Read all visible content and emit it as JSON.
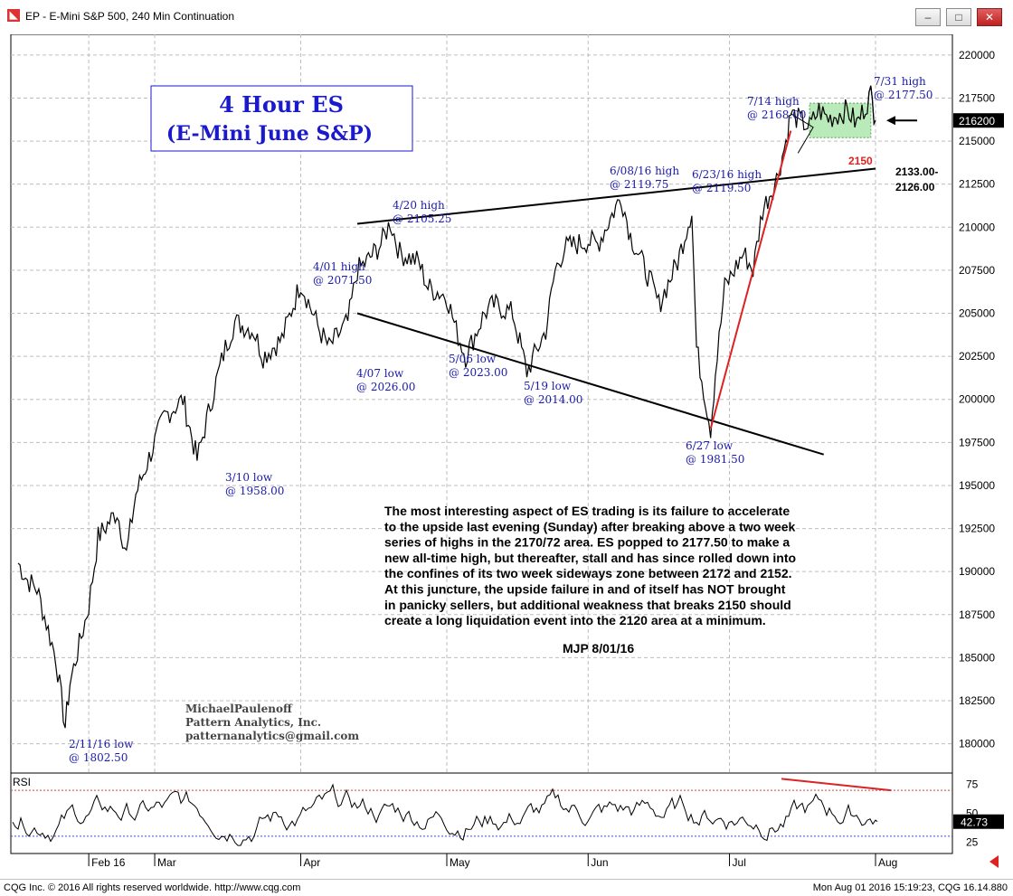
{
  "window": {
    "title": "EP - E-Mini S&P 500, 240 Min Continuation",
    "min_label": "–",
    "max_label": "□",
    "close_label": "✕"
  },
  "status": {
    "left": "CQG Inc. © 2016 All rights reserved worldwide. http://www.cqg.com",
    "right": "Mon Aug 01 2016 15:19:23, CQG 16.14.880"
  },
  "chart_data": {
    "type": "line",
    "title": "4 Hour ES",
    "subtitle": "(E-Mini June S&P)",
    "x_labels": [
      "Feb 16",
      "Mar",
      "Apr",
      "May",
      "Jun",
      "Jul",
      "Aug"
    ],
    "y_ticks": [
      1800,
      1825,
      1850,
      1875,
      1900,
      1925,
      1950,
      1975,
      2000,
      2025,
      2050,
      2075,
      2100,
      2125,
      2150,
      2175,
      2200
    ],
    "y_tick_labels": [
      "180000",
      "182500",
      "185000",
      "187500",
      "190000",
      "192500",
      "195000",
      "197500",
      "200000",
      "202500",
      "205000",
      "207500",
      "210000",
      "212500",
      "215000",
      "217500",
      "220000"
    ],
    "ylim": [
      1783,
      2212
    ],
    "last_price_label": "216200",
    "last_price": 2162,
    "price_series": [
      [
        "2016-02-01",
        1905
      ],
      [
        "2016-02-03",
        1895
      ],
      [
        "2016-02-05",
        1890
      ],
      [
        "2016-02-09",
        1850
      ],
      [
        "2016-02-11",
        1810
      ],
      [
        "2016-02-12",
        1835
      ],
      [
        "2016-02-16",
        1880
      ],
      [
        "2016-02-18",
        1920
      ],
      [
        "2016-02-22",
        1935
      ],
      [
        "2016-02-24",
        1910
      ],
      [
        "2016-02-26",
        1945
      ],
      [
        "2016-03-01",
        1975
      ],
      [
        "2016-03-03",
        1990
      ],
      [
        "2016-03-07",
        2000
      ],
      [
        "2016-03-10",
        1965
      ],
      [
        "2016-03-14",
        2010
      ],
      [
        "2016-03-16",
        2030
      ],
      [
        "2016-03-18",
        2045
      ],
      [
        "2016-03-22",
        2040
      ],
      [
        "2016-03-24",
        2025
      ],
      [
        "2016-03-28",
        2035
      ],
      [
        "2016-04-01",
        2068
      ],
      [
        "2016-04-05",
        2040
      ],
      [
        "2016-04-07",
        2030
      ],
      [
        "2016-04-11",
        2045
      ],
      [
        "2016-04-13",
        2075
      ],
      [
        "2016-04-15",
        2080
      ],
      [
        "2016-04-18",
        2090
      ],
      [
        "2016-04-20",
        2103
      ],
      [
        "2016-04-22",
        2085
      ],
      [
        "2016-04-26",
        2080
      ],
      [
        "2016-04-28",
        2065
      ],
      [
        "2016-05-02",
        2060
      ],
      [
        "2016-05-04",
        2040
      ],
      [
        "2016-05-06",
        2025
      ],
      [
        "2016-05-10",
        2050
      ],
      [
        "2016-05-12",
        2055
      ],
      [
        "2016-05-16",
        2050
      ],
      [
        "2016-05-19",
        2016
      ],
      [
        "2016-05-23",
        2040
      ],
      [
        "2016-05-25",
        2075
      ],
      [
        "2016-05-27",
        2088
      ],
      [
        "2016-06-01",
        2092
      ],
      [
        "2016-06-03",
        2090
      ],
      [
        "2016-06-08",
        2118
      ],
      [
        "2016-06-10",
        2095
      ],
      [
        "2016-06-14",
        2070
      ],
      [
        "2016-06-16",
        2055
      ],
      [
        "2016-06-20",
        2080
      ],
      [
        "2016-06-23",
        2110
      ],
      [
        "2016-06-24",
        2030
      ],
      [
        "2016-06-27",
        1983
      ],
      [
        "2016-06-28",
        2015
      ],
      [
        "2016-06-30",
        2065
      ],
      [
        "2016-07-04",
        2085
      ],
      [
        "2016-07-06",
        2075
      ],
      [
        "2016-07-08",
        2110
      ],
      [
        "2016-07-11",
        2128
      ],
      [
        "2016-07-13",
        2150
      ],
      [
        "2016-07-14",
        2166
      ],
      [
        "2016-07-18",
        2158
      ],
      [
        "2016-07-20",
        2168
      ],
      [
        "2016-07-22",
        2163
      ],
      [
        "2016-07-26",
        2168
      ],
      [
        "2016-07-28",
        2160
      ],
      [
        "2016-07-31",
        2177
      ],
      [
        "2016-08-01",
        2162
      ]
    ],
    "trendlines": [
      {
        "id": "upper-trendline",
        "from": [
          "2016-04-13",
          2102
        ],
        "to": [
          "2016-08-01",
          2134
        ],
        "color": "#000000"
      },
      {
        "id": "lower-trendline",
        "from": [
          "2016-04-13",
          2050
        ],
        "to": [
          "2016-07-21",
          1968
        ],
        "color": "#000000"
      },
      {
        "id": "red-uptrend",
        "from": [
          "2016-06-27",
          1983
        ],
        "to": [
          "2016-07-14",
          2156
        ],
        "color": "#dd2222"
      }
    ],
    "annotations": [
      {
        "id": "2-11-low",
        "line1": "2/11/16 low",
        "line2": "@ 1802.50"
      },
      {
        "id": "3-10-low",
        "line1": "3/10 low",
        "line2": "@ 1958.00"
      },
      {
        "id": "4-01-high",
        "line1": "4/01 high",
        "line2": "@ 2071.50"
      },
      {
        "id": "4-07-low",
        "line1": "4/07 low",
        "line2": "@ 2026.00"
      },
      {
        "id": "4-20-high",
        "line1": "4/20 high",
        "line2": "@ 2105.25"
      },
      {
        "id": "5-06-low",
        "line1": "5/06 low",
        "line2": "@ 2023.00"
      },
      {
        "id": "5-19-low",
        "line1": "5/19 low",
        "line2": "@ 2014.00"
      },
      {
        "id": "6-08-high",
        "line1": "6/08/16 high",
        "line2": "@ 2119.75"
      },
      {
        "id": "6-23-high",
        "line1": "6/23/16 high",
        "line2": "@ 2119.50"
      },
      {
        "id": "6-27-low",
        "line1": "6/27 low",
        "line2": "@ 1981.50"
      },
      {
        "id": "7-14-high",
        "line1": "7/14 high",
        "line2": "@ 2168.00"
      },
      {
        "id": "7-31-high",
        "line1": "7/31 high",
        "line2": "@ 2177.50"
      }
    ],
    "level_label_2150": "2150",
    "zone_label_line1": "2133.00-",
    "zone_label_line2": "2126.00",
    "commentary": [
      "The most interesting aspect of ES trading is its failure to accelerate",
      "to the upside last evening (Sunday) after breaking above a two week",
      "series of highs in the 2170/72 area. ES popped to 2177.50 to make a",
      "new all-time high, but thereafter, stall and has since rolled down into",
      "the confines of its two week sideways zone between 2172 and 2152.",
      "At this juncture, the upside failure in and of itself has NOT brought",
      "in panicky sellers, but additional weakness that breaks 2150 should",
      "create a long liquidation event into the 2120 area at a minimum."
    ],
    "signature": "MJP 8/01/16",
    "credit": [
      "MichaelPaulenoff",
      "Pattern Analytics, Inc.",
      "patternanalytics@gmail.com"
    ],
    "rsi": {
      "label": "RSI",
      "ticks": [
        25,
        50,
        75
      ],
      "last_value_label": "42.73",
      "last_value": 42.73,
      "overbought": 70,
      "oversold": 30,
      "ylim": [
        15,
        85
      ]
    },
    "colors": {
      "annotation_blue": "#1a1aaa",
      "title_blue": "#1a1acc",
      "red": "#dd2222",
      "consolidation_fill": "#a8e6a8"
    }
  }
}
